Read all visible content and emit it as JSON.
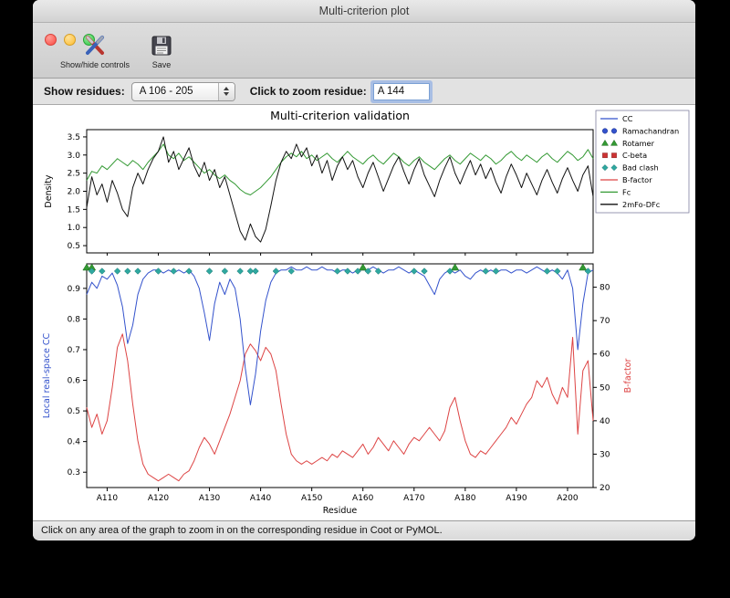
{
  "window": {
    "title": "Multi-criterion plot",
    "toolbar": {
      "show_hide_label": "Show/hide controls",
      "save_label": "Save"
    },
    "controls": {
      "show_residues_label": "Show residues:",
      "residue_range_value": "A 106 - 205",
      "zoom_label": "Click to zoom residue:",
      "zoom_value": "A 144"
    },
    "status_text": "Click on any area of the graph to zoom in on the corresponding residue in Coot or PyMOL."
  },
  "chart_data": {
    "type": "line",
    "title": "Multi-criterion validation",
    "xlabel": "Residue",
    "x_range": [
      106,
      205
    ],
    "x_tick_residues": [
      110,
      120,
      130,
      140,
      150,
      160,
      170,
      180,
      190,
      200
    ],
    "x_tick_labels": [
      "A110",
      "A120",
      "A130",
      "A140",
      "A150",
      "A160",
      "A170",
      "A180",
      "A190",
      "A200"
    ],
    "top_plot": {
      "ylabel": "Density",
      "ylim": [
        0.3,
        3.7
      ],
      "yticks": [
        0.5,
        1.0,
        1.5,
        2.0,
        2.5,
        3.0,
        3.5
      ],
      "series": [
        {
          "name": "Fc",
          "color": "#339933",
          "values": [
            2.3,
            2.55,
            2.5,
            2.7,
            2.6,
            2.75,
            2.9,
            2.8,
            2.7,
            2.85,
            2.75,
            2.6,
            2.8,
            2.95,
            3.1,
            3.3,
            3.0,
            2.9,
            3.05,
            2.85,
            2.95,
            2.8,
            2.65,
            2.5,
            2.6,
            2.45,
            2.35,
            2.45,
            2.3,
            2.2,
            2.05,
            1.95,
            1.9,
            2.0,
            2.1,
            2.25,
            2.4,
            2.6,
            2.8,
            2.95,
            3.05,
            2.95,
            3.1,
            2.9,
            3.0,
            2.85,
            2.95,
            3.05,
            2.9,
            2.8,
            2.95,
            3.1,
            2.95,
            2.85,
            2.75,
            2.9,
            3.0,
            2.85,
            2.75,
            2.9,
            3.05,
            2.95,
            2.8,
            2.7,
            2.85,
            2.95,
            2.8,
            2.7,
            2.6,
            2.75,
            2.9,
            3.0,
            2.85,
            2.75,
            2.9,
            3.05,
            2.95,
            2.85,
            3.0,
            2.9,
            2.75,
            2.85,
            3.0,
            3.1,
            2.95,
            2.85,
            3.0,
            2.9,
            2.8,
            2.95,
            3.05,
            2.9,
            2.8,
            2.95,
            3.1,
            3.0,
            2.85,
            2.95,
            3.15,
            2.9
          ]
        },
        {
          "name": "2mFo-DFc",
          "color": "#111111",
          "values": [
            1.55,
            2.4,
            1.9,
            2.2,
            1.7,
            2.3,
            1.95,
            1.5,
            1.3,
            2.1,
            2.5,
            2.2,
            2.6,
            2.9,
            3.1,
            3.5,
            2.8,
            3.1,
            2.6,
            2.9,
            3.2,
            2.7,
            2.4,
            2.8,
            2.3,
            2.6,
            2.1,
            2.4,
            1.9,
            1.4,
            0.9,
            0.65,
            1.1,
            0.75,
            0.6,
            0.95,
            1.6,
            2.3,
            2.8,
            3.1,
            2.9,
            3.3,
            2.95,
            3.2,
            2.7,
            3.0,
            2.5,
            2.85,
            2.3,
            2.7,
            2.95,
            2.6,
            2.85,
            2.4,
            2.1,
            2.5,
            2.8,
            2.4,
            2.0,
            2.35,
            2.7,
            2.95,
            2.55,
            2.2,
            2.6,
            2.9,
            2.45,
            2.15,
            1.85,
            2.3,
            2.65,
            2.95,
            2.5,
            2.2,
            2.55,
            2.85,
            2.45,
            2.75,
            2.35,
            2.65,
            2.25,
            1.95,
            2.4,
            2.75,
            2.45,
            2.1,
            2.5,
            2.2,
            1.9,
            2.3,
            2.6,
            2.25,
            1.95,
            2.35,
            2.65,
            2.3,
            2.0,
            2.45,
            2.7,
            1.85
          ]
        }
      ]
    },
    "bottom_plot": {
      "ylabel_left": "Local real-space CC",
      "ylabel_left_color": "#3352cc",
      "ylabel_right": "B-factor",
      "ylabel_right_color": "#dd4444",
      "ylim_left": [
        0.25,
        0.98
      ],
      "ylim_right": [
        20,
        87
      ],
      "yticks_left": [
        0.3,
        0.4,
        0.5,
        0.6,
        0.7,
        0.8,
        0.9
      ],
      "yticks_right": [
        20,
        30,
        40,
        50,
        60,
        70,
        80
      ],
      "series": [
        {
          "name": "CC",
          "axis": "left",
          "color": "#3352cc",
          "values": [
            0.88,
            0.92,
            0.9,
            0.94,
            0.93,
            0.95,
            0.91,
            0.84,
            0.72,
            0.78,
            0.88,
            0.93,
            0.95,
            0.96,
            0.96,
            0.95,
            0.96,
            0.95,
            0.96,
            0.95,
            0.96,
            0.94,
            0.9,
            0.82,
            0.73,
            0.85,
            0.92,
            0.88,
            0.93,
            0.9,
            0.8,
            0.64,
            0.52,
            0.62,
            0.76,
            0.86,
            0.92,
            0.95,
            0.96,
            0.96,
            0.97,
            0.96,
            0.96,
            0.97,
            0.96,
            0.96,
            0.97,
            0.96,
            0.96,
            0.95,
            0.96,
            0.96,
            0.95,
            0.96,
            0.96,
            0.96,
            0.97,
            0.96,
            0.95,
            0.96,
            0.96,
            0.97,
            0.96,
            0.95,
            0.96,
            0.95,
            0.94,
            0.91,
            0.88,
            0.93,
            0.95,
            0.96,
            0.95,
            0.96,
            0.94,
            0.93,
            0.95,
            0.96,
            0.95,
            0.96,
            0.95,
            0.96,
            0.96,
            0.95,
            0.96,
            0.96,
            0.95,
            0.96,
            0.97,
            0.96,
            0.95,
            0.96,
            0.95,
            0.93,
            0.96,
            0.9,
            0.7,
            0.85,
            0.95,
            0.96
          ]
        },
        {
          "name": "B-factor",
          "axis": "right",
          "color": "#dd4444",
          "values": [
            44,
            38,
            42,
            36,
            40,
            50,
            62,
            66,
            58,
            45,
            34,
            27,
            24,
            23,
            22,
            23,
            24,
            23,
            22,
            24,
            25,
            28,
            32,
            35,
            33,
            30,
            34,
            38,
            42,
            47,
            52,
            60,
            63,
            61,
            58,
            62,
            60,
            55,
            45,
            36,
            30,
            28,
            27,
            28,
            27,
            28,
            29,
            28,
            30,
            29,
            31,
            30,
            29,
            31,
            33,
            30,
            32,
            35,
            33,
            31,
            34,
            32,
            30,
            33,
            35,
            34,
            36,
            38,
            36,
            34,
            37,
            44,
            47,
            40,
            34,
            30,
            29,
            31,
            30,
            32,
            34,
            36,
            38,
            41,
            39,
            42,
            45,
            47,
            52,
            50,
            53,
            48,
            45,
            50,
            47,
            65,
            36,
            55,
            58,
            40
          ]
        }
      ],
      "markers": [
        {
          "name": "Rotamer",
          "shape": "triangle",
          "color": "#339933",
          "residues": [
            106,
            107,
            160,
            178,
            203
          ]
        },
        {
          "name": "Bad clash",
          "shape": "diamond",
          "color": "#2fa8a0",
          "residues": [
            107,
            109,
            112,
            114,
            116,
            120,
            123,
            126,
            130,
            133,
            136,
            138,
            139,
            143,
            146,
            155,
            157,
            159,
            161,
            163,
            170,
            172,
            177,
            184,
            186,
            196,
            198,
            204
          ]
        }
      ]
    },
    "legend": [
      {
        "label": "CC",
        "type": "line",
        "color": "#3352cc"
      },
      {
        "label": "Ramachandran",
        "type": "marker",
        "shape": "circle",
        "color": "#3352cc"
      },
      {
        "label": "Rotamer",
        "type": "marker",
        "shape": "triangle",
        "color": "#339933"
      },
      {
        "label": "C-beta",
        "type": "marker",
        "shape": "square",
        "color": "#cc3333"
      },
      {
        "label": "Bad clash",
        "type": "marker",
        "shape": "diamond",
        "color": "#2fa8a0"
      },
      {
        "label": "B-factor",
        "type": "line",
        "color": "#dd4444"
      },
      {
        "label": "Fc",
        "type": "line",
        "color": "#339933"
      },
      {
        "label": "2mFo-DFc",
        "type": "line",
        "color": "#111111"
      }
    ]
  }
}
